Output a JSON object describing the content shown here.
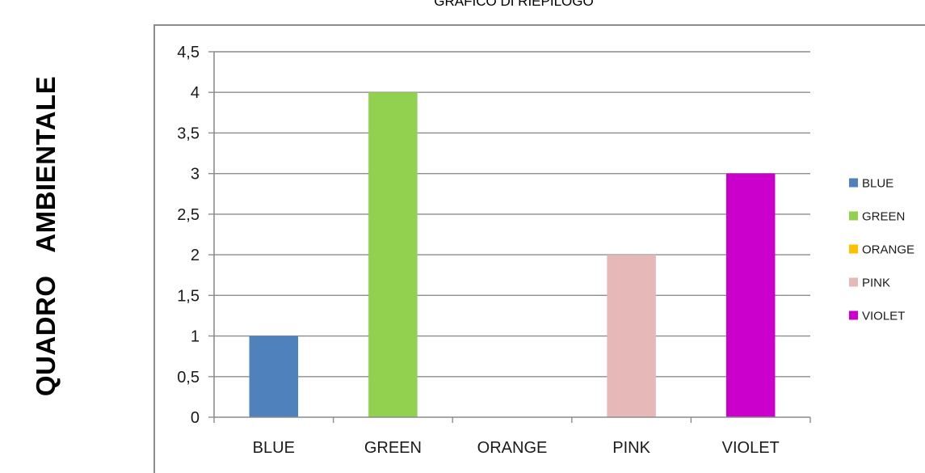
{
  "side_label": "QUADRO   AMBIENTALE",
  "chart_data": {
    "type": "bar",
    "title": "GRAFICO DI RIEPILOGO",
    "categories": [
      "BLUE",
      "GREEN",
      "ORANGE",
      "PINK",
      "VIOLET"
    ],
    "values": [
      1,
      4,
      0,
      2,
      3
    ],
    "colors": [
      "#4f81bd",
      "#92d050",
      "#ffc000",
      "#e6b9b8",
      "#cc00cc"
    ],
    "ylim": [
      0,
      4.5
    ],
    "yticks": [
      "0",
      "0,5",
      "1",
      "1,5",
      "2",
      "2,5",
      "3",
      "3,5",
      "4",
      "4,5"
    ],
    "grid": true,
    "legend_position": "right",
    "legend": [
      "BLUE",
      "GREEN",
      "ORANGE",
      "PINK",
      "VIOLET"
    ]
  }
}
